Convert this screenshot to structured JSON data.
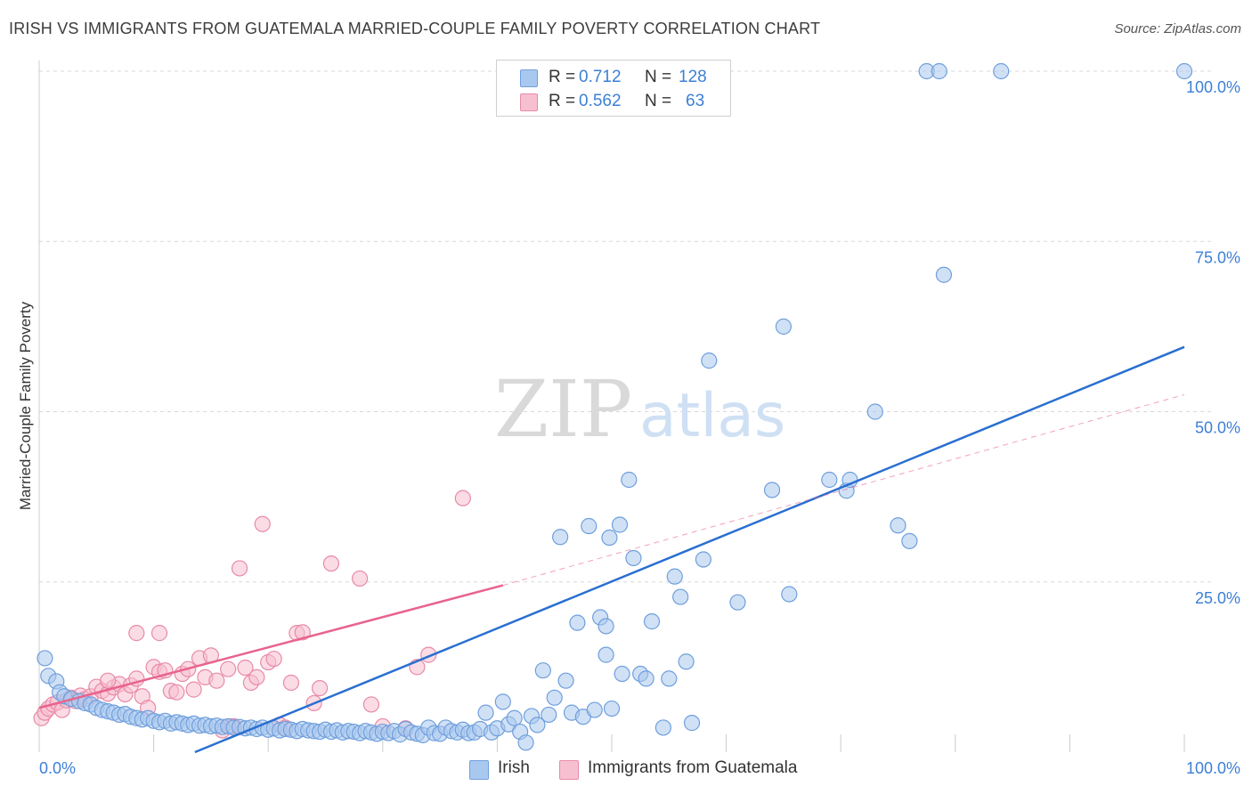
{
  "title": "IRISH VS IMMIGRANTS FROM GUATEMALA MARRIED-COUPLE FAMILY POVERTY CORRELATION CHART",
  "source": "Source: ZipAtlas.com",
  "watermark": {
    "zip": "ZIP",
    "atlas": "atlas"
  },
  "legend": {
    "r_label": "R =",
    "n_label": "N =",
    "series": [
      {
        "name": "Irish",
        "r": "0.712",
        "n": "128",
        "fill": "#a9c8ef",
        "stroke": "#6f9fdc"
      },
      {
        "name": "Immigrants from Guatemala",
        "r": "0.562",
        "n": "63",
        "fill": "#f7c0d0",
        "stroke": "#e88aa8"
      }
    ]
  },
  "colors": {
    "blue": "#3d7fd6",
    "blue_line": "#2a6fd0",
    "pink": "#e8638e",
    "value_text": "#3d7fd6",
    "grid": "#d8d8d8"
  },
  "chart_data": {
    "type": "scatter",
    "title": "IRISH VS IMMIGRANTS FROM GUATEMALA MARRIED-COUPLE FAMILY POVERTY CORRELATION CHART",
    "xlabel": "",
    "ylabel": "Married-Couple Family Poverty",
    "xlim": [
      0,
      100
    ],
    "ylim": [
      0,
      100
    ],
    "x_tick_labels": [
      "0.0%",
      "100.0%"
    ],
    "y_tick_labels": [
      "100.0%",
      "75.0%",
      "50.0%",
      "25.0%"
    ],
    "y_tick_values": [
      100,
      75,
      50,
      25
    ],
    "series": [
      {
        "name": "Irish",
        "points": [
          [
            0.5,
            13.8
          ],
          [
            0.8,
            11.2
          ],
          [
            1.5,
            10.4
          ],
          [
            1.8,
            8.8
          ],
          [
            2.2,
            8.2
          ],
          [
            2.8,
            7.8
          ],
          [
            3.5,
            7.5
          ],
          [
            4,
            7.2
          ],
          [
            4.5,
            7
          ],
          [
            5,
            6.5
          ],
          [
            5.5,
            6.2
          ],
          [
            6,
            6
          ],
          [
            6.5,
            5.8
          ],
          [
            7,
            5.5
          ],
          [
            7.5,
            5.6
          ],
          [
            8,
            5.2
          ],
          [
            8.5,
            5
          ],
          [
            9,
            4.8
          ],
          [
            9.5,
            5
          ],
          [
            10,
            4.6
          ],
          [
            10.5,
            4.4
          ],
          [
            11,
            4.6
          ],
          [
            11.5,
            4.2
          ],
          [
            12,
            4.4
          ],
          [
            12.5,
            4.2
          ],
          [
            13,
            4
          ],
          [
            13.5,
            4.2
          ],
          [
            14,
            3.9
          ],
          [
            14.5,
            4
          ],
          [
            15,
            3.8
          ],
          [
            15.5,
            3.9
          ],
          [
            16,
            3.7
          ],
          [
            16.5,
            3.8
          ],
          [
            17,
            3.6
          ],
          [
            17.5,
            3.7
          ],
          [
            18,
            3.5
          ],
          [
            18.5,
            3.6
          ],
          [
            19,
            3.4
          ],
          [
            19.5,
            3.6
          ],
          [
            20,
            3.3
          ],
          [
            20.5,
            3.5
          ],
          [
            21,
            3.2
          ],
          [
            21.5,
            3.4
          ],
          [
            22,
            3.3
          ],
          [
            22.5,
            3.1
          ],
          [
            23,
            3.4
          ],
          [
            23.5,
            3.2
          ],
          [
            24,
            3.1
          ],
          [
            24.5,
            3
          ],
          [
            25,
            3.3
          ],
          [
            25.5,
            3
          ],
          [
            26,
            3.2
          ],
          [
            26.5,
            2.9
          ],
          [
            27,
            3.1
          ],
          [
            27.5,
            3
          ],
          [
            28,
            2.8
          ],
          [
            28.5,
            3.1
          ],
          [
            29,
            2.9
          ],
          [
            29.5,
            2.7
          ],
          [
            30,
            3
          ],
          [
            30.5,
            2.8
          ],
          [
            31,
            3.1
          ],
          [
            31.5,
            2.6
          ],
          [
            32,
            3.4
          ],
          [
            32.5,
            2.9
          ],
          [
            33,
            2.7
          ],
          [
            33.5,
            2.5
          ],
          [
            34,
            3.6
          ],
          [
            34.5,
            2.8
          ],
          [
            35,
            2.7
          ],
          [
            35.5,
            3.6
          ],
          [
            36,
            3.1
          ],
          [
            36.5,
            2.9
          ],
          [
            37,
            3.3
          ],
          [
            37.5,
            2.8
          ],
          [
            38,
            2.9
          ],
          [
            38.5,
            3.4
          ],
          [
            39,
            5.8
          ],
          [
            39.5,
            2.9
          ],
          [
            40,
            3.5
          ],
          [
            40.5,
            7.4
          ],
          [
            41,
            4.1
          ],
          [
            41.5,
            5
          ],
          [
            42,
            3
          ],
          [
            42.5,
            1.4
          ],
          [
            43,
            5.3
          ],
          [
            43.5,
            4
          ],
          [
            44,
            12
          ],
          [
            44.5,
            5.5
          ],
          [
            45,
            8
          ],
          [
            45.5,
            31.6
          ],
          [
            46,
            10.5
          ],
          [
            46.5,
            5.8
          ],
          [
            47,
            19
          ],
          [
            47.5,
            5.2
          ],
          [
            48,
            33.2
          ],
          [
            48.5,
            6.2
          ],
          [
            49,
            19.8
          ],
          [
            49.5,
            14.3
          ],
          [
            49.8,
            31.5
          ],
          [
            50,
            6.4
          ],
          [
            50.7,
            33.4
          ],
          [
            49.5,
            18.5
          ],
          [
            50.9,
            11.5
          ],
          [
            51.5,
            40
          ],
          [
            51.9,
            28.5
          ],
          [
            52.5,
            11.5
          ],
          [
            53,
            10.8
          ],
          [
            53.5,
            19.2
          ],
          [
            54.5,
            3.6
          ],
          [
            55,
            10.8
          ],
          [
            55.5,
            25.8
          ],
          [
            56,
            22.8
          ],
          [
            56.5,
            13.3
          ],
          [
            57,
            4.3
          ],
          [
            58,
            28.3
          ],
          [
            58.5,
            57.5
          ],
          [
            61,
            22
          ],
          [
            64,
            38.5
          ],
          [
            65,
            62.5
          ],
          [
            65.5,
            23.2
          ],
          [
            69,
            40
          ],
          [
            70.5,
            38.4
          ],
          [
            70.8,
            40
          ],
          [
            73,
            50
          ],
          [
            75,
            33.3
          ],
          [
            76,
            31
          ],
          [
            79,
            70.1
          ],
          [
            77.5,
            100
          ],
          [
            78.6,
            100
          ],
          [
            84,
            100
          ],
          [
            100,
            100
          ]
        ]
      },
      {
        "name": "Immigrants from Guatemala",
        "points": [
          [
            0.2,
            5
          ],
          [
            0.5,
            5.8
          ],
          [
            0.8,
            6.4
          ],
          [
            1.2,
            7
          ],
          [
            1.6,
            7.3
          ],
          [
            2,
            6.2
          ],
          [
            2.4,
            7.6
          ],
          [
            2.8,
            8
          ],
          [
            3.2,
            7.5
          ],
          [
            3.6,
            8.3
          ],
          [
            4,
            7.8
          ],
          [
            4.5,
            8.2
          ],
          [
            5,
            9.6
          ],
          [
            5.5,
            9
          ],
          [
            6,
            8.6
          ],
          [
            6.5,
            9.5
          ],
          [
            7,
            10
          ],
          [
            7.5,
            8.5
          ],
          [
            8,
            9.8
          ],
          [
            8.5,
            10.8
          ],
          [
            9,
            8.2
          ],
          [
            9.5,
            6.5
          ],
          [
            10,
            12.5
          ],
          [
            10.5,
            11.8
          ],
          [
            11,
            12
          ],
          [
            11.5,
            9
          ],
          [
            12,
            8.8
          ],
          [
            12.5,
            11.5
          ],
          [
            13,
            12.2
          ],
          [
            13.5,
            9.2
          ],
          [
            14,
            13.8
          ],
          [
            14.5,
            11
          ],
          [
            15,
            14.2
          ],
          [
            15.5,
            10.5
          ],
          [
            16,
            3.2
          ],
          [
            16.5,
            12.2
          ],
          [
            17,
            3.8
          ],
          [
            17.5,
            27
          ],
          [
            18,
            12.4
          ],
          [
            18.5,
            10.2
          ],
          [
            19,
            11
          ],
          [
            19.5,
            33.5
          ],
          [
            20,
            13.2
          ],
          [
            20.5,
            13.7
          ],
          [
            21,
            4
          ],
          [
            21.5,
            3.6
          ],
          [
            22,
            10.2
          ],
          [
            22.5,
            17.5
          ],
          [
            23,
            17.6
          ],
          [
            24,
            7.2
          ],
          [
            24.5,
            9.4
          ],
          [
            25.5,
            27.7
          ],
          [
            28,
            25.5
          ],
          [
            29,
            7
          ],
          [
            30,
            3.8
          ],
          [
            32,
            3.5
          ],
          [
            33,
            12.5
          ],
          [
            34,
            14.3
          ],
          [
            37,
            37.3
          ],
          [
            8.5,
            17.5
          ],
          [
            10.5,
            17.5
          ],
          [
            6,
            10.5
          ],
          [
            16.8,
            3.8
          ]
        ]
      }
    ],
    "trend_lines": [
      {
        "series": "Irish",
        "from": [
          13.6,
          0
        ],
        "to": [
          100,
          59.5
        ],
        "style": "solid"
      },
      {
        "series": "Immigrants from Guatemala",
        "from": [
          0,
          6.5
        ],
        "to": [
          40.5,
          24.5
        ],
        "style": "solid"
      },
      {
        "series": "Immigrants from Guatemala",
        "from": [
          40.5,
          24.5
        ],
        "to": [
          100,
          52.5
        ],
        "style": "dashed"
      }
    ]
  }
}
